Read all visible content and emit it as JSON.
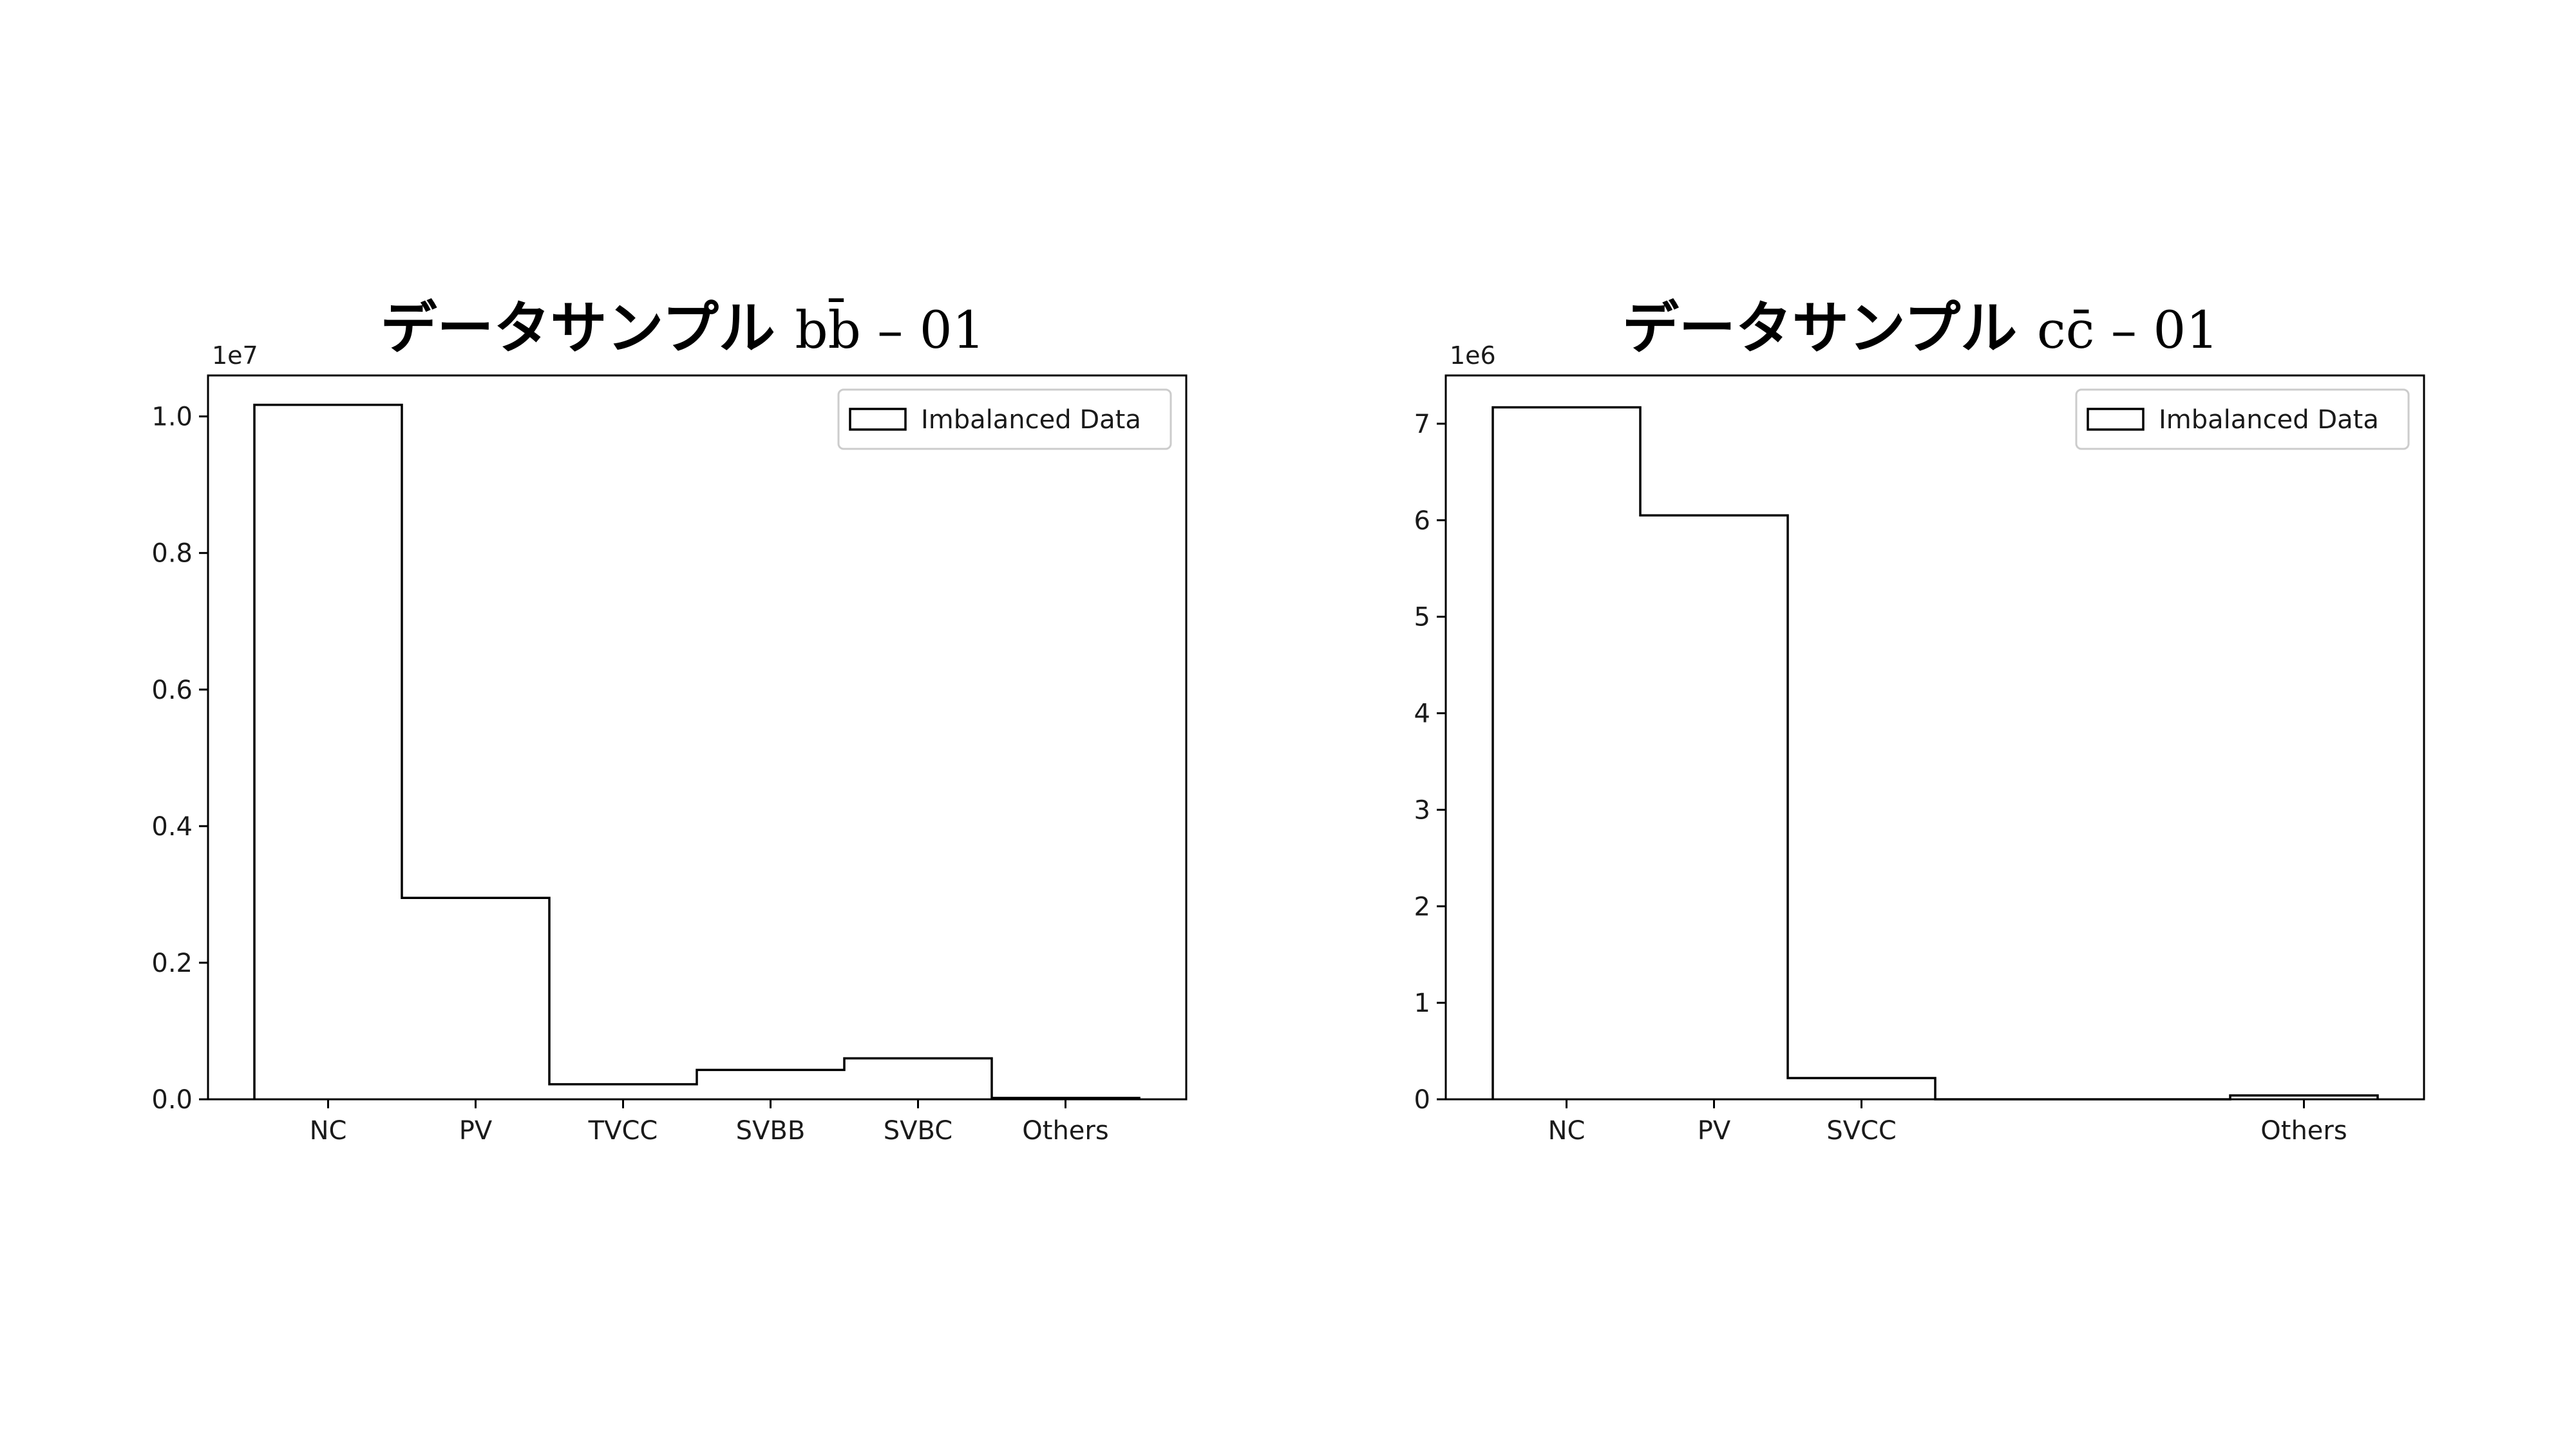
{
  "chart_data": [
    {
      "type": "bar",
      "title": "データサンプル b̅b – 01",
      "title_jp": "データサンプル",
      "title_math": "bb̄ – 01",
      "offset_label": "1e7",
      "ylim": [
        0,
        1.06
      ],
      "yticks": [
        "0.0",
        "0.2",
        "0.4",
        "0.6",
        "0.8",
        "1.0"
      ],
      "ytick_values": [
        0.0,
        0.2,
        0.4,
        0.6,
        0.8,
        1.0
      ],
      "categories": [
        "NC",
        "PV",
        "TVCC",
        "SVBB",
        "SVBC",
        "Others"
      ],
      "xlabels": [
        "NC",
        "PV",
        "TVCC",
        "SVBB",
        "SVBC",
        "Others"
      ],
      "series": [
        {
          "name": "Imbalanced Data",
          "values": [
            1.017,
            0.295,
            0.022,
            0.043,
            0.06,
            0.002
          ]
        }
      ],
      "legend": "top-right",
      "grid": false
    },
    {
      "type": "bar",
      "title": "データサンプル cc̄ – 01",
      "title_jp": "データサンプル",
      "title_math": "cc̄ – 01",
      "offset_label": "1e6",
      "ylim": [
        0,
        7.5
      ],
      "yticks": [
        "0",
        "1",
        "2",
        "3",
        "4",
        "5",
        "6",
        "7"
      ],
      "ytick_values": [
        0,
        1,
        2,
        3,
        4,
        5,
        6,
        7
      ],
      "categories": [
        "NC",
        "PV",
        "SVCC",
        "",
        "",
        "Others"
      ],
      "xlabels": [
        "NC",
        "PV",
        "SVCC",
        "",
        "",
        "Others"
      ],
      "series": [
        {
          "name": "Imbalanced Data",
          "values": [
            7.17,
            6.05,
            0.22,
            0.0,
            0.0,
            0.04
          ]
        }
      ],
      "legend": "top-right",
      "grid": false
    }
  ]
}
